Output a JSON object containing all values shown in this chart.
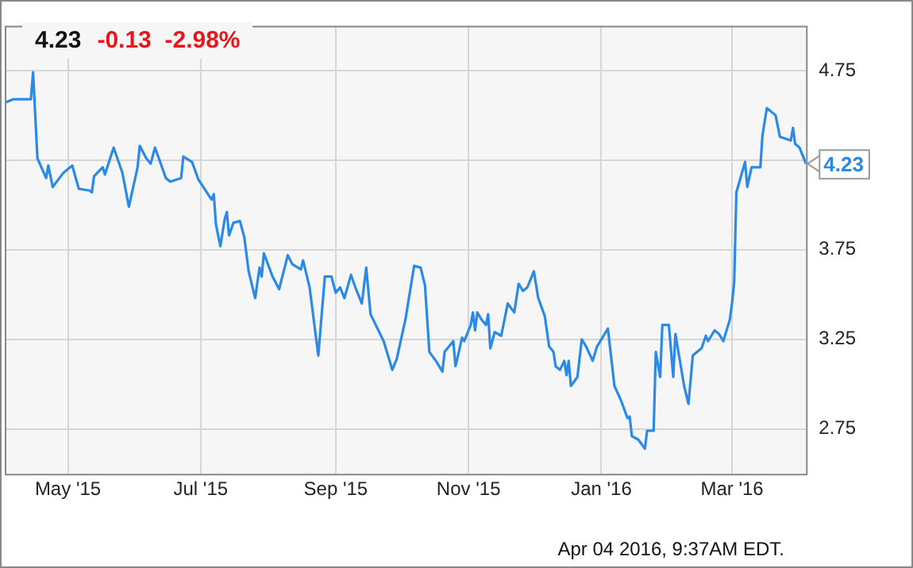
{
  "chart_data": {
    "type": "line",
    "title": "4.23",
    "subtitle": "-0.13  -2.98%",
    "x": [
      "2015-04-02",
      "2015-04-06",
      "2015-04-14",
      "2015-04-15",
      "2015-04-17",
      "2015-04-21",
      "2015-04-22",
      "2015-04-24",
      "2015-04-29",
      "2015-05-03",
      "2015-05-06",
      "2015-05-11",
      "2015-05-12",
      "2015-05-13",
      "2015-05-17",
      "2015-05-18",
      "2015-05-22",
      "2015-05-26",
      "2015-05-29",
      "2015-06-02",
      "2015-06-03",
      "2015-06-06",
      "2015-06-08",
      "2015-06-10",
      "2015-06-15",
      "2015-06-17",
      "2015-06-22",
      "2015-06-23",
      "2015-06-27",
      "2015-06-30",
      "2015-07-06",
      "2015-07-07",
      "2015-07-08",
      "2015-07-10",
      "2015-07-12",
      "2015-07-13",
      "2015-07-14",
      "2015-07-16",
      "2015-07-19",
      "2015-07-21",
      "2015-07-23",
      "2015-07-26",
      "2015-07-28",
      "2015-07-29",
      "2015-07-30",
      "2015-08-03",
      "2015-08-06",
      "2015-08-10",
      "2015-08-12",
      "2015-08-16",
      "2015-08-17",
      "2015-08-20",
      "2015-08-24",
      "2015-08-27",
      "2015-08-30",
      "2015-09-01",
      "2015-09-03",
      "2015-09-05",
      "2015-09-08",
      "2015-09-10",
      "2015-09-13",
      "2015-09-15",
      "2015-09-17",
      "2015-09-23",
      "2015-09-27",
      "2015-09-29",
      "2015-10-03",
      "2015-10-07",
      "2015-10-10",
      "2015-10-12",
      "2015-10-14",
      "2015-10-17",
      "2015-10-20",
      "2015-10-21",
      "2015-10-25",
      "2015-10-26",
      "2015-10-27",
      "2015-10-29",
      "2015-10-30",
      "2015-11-02",
      "2015-11-03",
      "2015-11-04",
      "2015-11-05",
      "2015-11-07",
      "2015-11-09",
      "2015-11-10",
      "2015-11-11",
      "2015-11-13",
      "2015-11-16",
      "2015-11-19",
      "2015-11-22",
      "2015-11-24",
      "2015-11-26",
      "2015-11-28",
      "2015-12-01",
      "2015-12-03",
      "2015-12-06",
      "2015-12-08",
      "2015-12-10",
      "2015-12-11",
      "2015-12-13",
      "2015-12-15",
      "2015-12-16",
      "2015-12-17",
      "2015-12-18",
      "2015-12-21",
      "2015-12-23",
      "2015-12-25",
      "2015-12-28",
      "2015-12-30",
      "2016-01-04",
      "2016-01-07",
      "2016-01-10",
      "2016-01-13",
      "2016-01-14",
      "2016-01-15",
      "2016-01-18",
      "2016-01-21",
      "2016-01-22",
      "2016-01-25",
      "2016-01-26",
      "2016-01-28",
      "2016-01-29",
      "2016-02-01",
      "2016-02-03",
      "2016-02-04",
      "2016-02-08",
      "2016-02-10",
      "2016-02-12",
      "2016-02-16",
      "2016-02-18",
      "2016-02-19",
      "2016-02-22",
      "2016-02-24",
      "2016-02-26",
      "2016-02-29",
      "2016-03-01",
      "2016-03-02",
      "2016-03-03",
      "2016-03-07",
      "2016-03-08",
      "2016-03-10",
      "2016-03-14",
      "2016-03-15",
      "2016-03-17",
      "2016-03-21",
      "2016-03-23",
      "2016-03-28",
      "2016-03-29",
      "2016-03-30",
      "2016-04-01",
      "2016-04-04"
    ],
    "series": [
      {
        "color": "#2a8ae6",
        "values": [
          4.57,
          4.59,
          4.59,
          4.74,
          4.26,
          4.15,
          4.22,
          4.1,
          4.18,
          4.22,
          4.09,
          4.08,
          4.07,
          4.16,
          4.21,
          4.17,
          4.32,
          4.18,
          3.99,
          4.21,
          4.33,
          4.26,
          4.23,
          4.32,
          4.15,
          4.13,
          4.15,
          4.27,
          4.24,
          4.14,
          4.03,
          4.06,
          3.89,
          3.77,
          3.92,
          3.96,
          3.83,
          3.9,
          3.91,
          3.82,
          3.63,
          3.48,
          3.65,
          3.6,
          3.73,
          3.6,
          3.53,
          3.72,
          3.67,
          3.64,
          3.69,
          3.54,
          3.16,
          3.6,
          3.6,
          3.51,
          3.54,
          3.48,
          3.61,
          3.54,
          3.45,
          3.65,
          3.39,
          3.24,
          3.08,
          3.14,
          3.36,
          3.66,
          3.65,
          3.55,
          3.18,
          3.13,
          3.07,
          3.18,
          3.24,
          3.1,
          3.15,
          3.26,
          3.24,
          3.33,
          3.4,
          3.3,
          3.4,
          3.36,
          3.33,
          3.39,
          3.2,
          3.29,
          3.27,
          3.45,
          3.4,
          3.56,
          3.52,
          3.54,
          3.63,
          3.48,
          3.38,
          3.21,
          3.18,
          3.1,
          3.08,
          3.13,
          3.05,
          3.13,
          2.99,
          3.04,
          3.25,
          3.21,
          3.13,
          3.21,
          3.31,
          2.99,
          2.91,
          2.81,
          2.82,
          2.71,
          2.69,
          2.64,
          2.74,
          2.74,
          3.18,
          3.04,
          3.33,
          3.33,
          3.04,
          3.28,
          2.99,
          2.89,
          3.16,
          3.2,
          3.27,
          3.24,
          3.3,
          3.28,
          3.24,
          3.36,
          3.45,
          3.57,
          4.07,
          4.24,
          4.1,
          4.21,
          4.21,
          4.39,
          4.54,
          4.5,
          4.38,
          4.36,
          4.43,
          4.34,
          4.32,
          4.23
        ]
      }
    ],
    "xlim": [
      "2015-04-02",
      "2016-04-04"
    ],
    "xticks": [
      {
        "value": "2015-05-01",
        "label": "May '15"
      },
      {
        "value": "2015-07-01",
        "label": "Jul '15"
      },
      {
        "value": "2015-09-01",
        "label": "Sep '15"
      },
      {
        "value": "2015-11-01",
        "label": "Nov '15"
      },
      {
        "value": "2016-01-01",
        "label": "Jan '16"
      },
      {
        "value": "2016-03-01",
        "label": "Mar '16"
      }
    ],
    "ylim": [
      2.5,
      5.0
    ],
    "yticks": [
      2.75,
      3.25,
      3.75,
      {
        "value": 4.25,
        "label": null
      },
      4.75
    ],
    "grid": true,
    "legend": false,
    "marker": "none",
    "line_style": "solid",
    "annotations": [
      {
        "text": "4.23",
        "x": "2016-04-04",
        "y": 4.23
      },
      "Apr 04 2016, 9:37AM EDT."
    ]
  }
}
